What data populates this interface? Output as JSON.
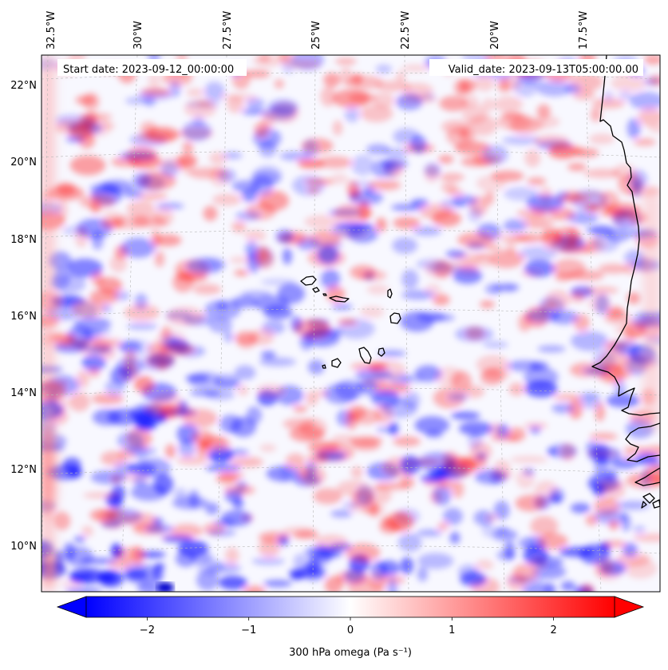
{
  "map": {
    "header": {
      "start_label": "Start date: 2023-09-12_00:00:00",
      "valid_label": "Valid_date: 2023-09-13T05:00:00.00"
    },
    "lon_labels": [
      "32.5°W",
      "30°W",
      "27.5°W",
      "25°W",
      "22.5°W",
      "20°W",
      "17.5°W"
    ],
    "lat_labels": [
      "22°N",
      "20°N",
      "18°N",
      "16°N",
      "14°N",
      "12°N",
      "10°N"
    ],
    "field": "300 hPa omega",
    "colors": {
      "negative": "#0000ff",
      "zero": "#ffffff",
      "positive": "#ff0000",
      "coastline": "#000000",
      "gridline": "#b8b8b8"
    },
    "features": [
      "Cape Verde islands",
      "West African coastline"
    ]
  },
  "colorbar": {
    "label": "300 hPa omega (Pa s⁻¹)",
    "ticks": [
      "−2",
      "−1",
      "0",
      "1",
      "2"
    ],
    "tick_values": [
      -2,
      -1,
      0,
      1,
      2
    ],
    "range": [
      -2.6,
      2.6
    ],
    "extend": "both"
  }
}
